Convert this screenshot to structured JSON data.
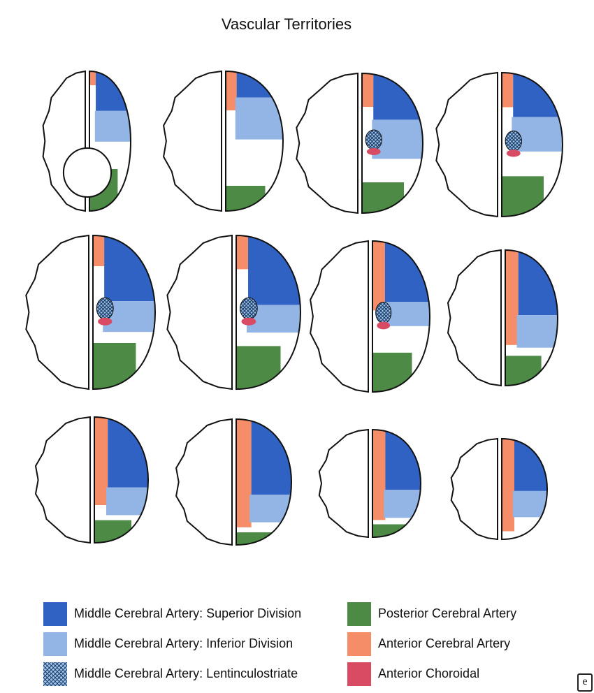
{
  "title": "Vascular Territories",
  "colors": {
    "mca_superior": "#2f62c2",
    "mca_inferior": "#93b5e6",
    "mca_lenticulostriate": "#1e3f6b",
    "pca": "#4c8a45",
    "aca": "#f58d69",
    "anterior_choroidal": "#d94a63",
    "outline": "#111111"
  },
  "legend": [
    {
      "key": "mca_superior",
      "label": "Middle Cerebral Artery: Superior Division"
    },
    {
      "key": "mca_inferior",
      "label": "Middle Cerebral Artery: Inferior Division"
    },
    {
      "key": "mca_lenticulostriate",
      "label": "Middle Cerebral Artery: Lentinculostriate",
      "pattern": "crosshatch"
    },
    {
      "key": "pca",
      "label": "Posterior Cerebral Artery"
    },
    {
      "key": "aca",
      "label": "Anterior Cerebral Artery"
    },
    {
      "key": "anterior_choroidal",
      "label": "Anterior Choroidal"
    }
  ],
  "corner_mark": "e",
  "slices": [
    {
      "level": 1,
      "aca": 0.1,
      "mca_sup": 0.22,
      "mca_inf": 0.22,
      "pca": 0.3,
      "lenticulostriate": false,
      "choroidal": false,
      "cerebellum": true
    },
    {
      "level": 2,
      "aca": 0.28,
      "mca_sup": 0.14,
      "mca_inf": 0.3,
      "pca": 0.18,
      "lenticulostriate": false,
      "choroidal": false,
      "cerebellum": false
    },
    {
      "level": 3,
      "aca": 0.24,
      "mca_sup": 0.26,
      "mca_inf": 0.28,
      "pca": 0.22,
      "lenticulostriate": true,
      "choroidal": true,
      "cerebellum": false
    },
    {
      "level": 4,
      "aca": 0.24,
      "mca_sup": 0.24,
      "mca_inf": 0.24,
      "pca": 0.28,
      "lenticulostriate": true,
      "choroidal": true,
      "cerebellum": false
    },
    {
      "level": 5,
      "aca": 0.2,
      "mca_sup": 0.34,
      "mca_inf": 0.2,
      "pca": 0.3,
      "lenticulostriate": true,
      "choroidal": true,
      "cerebellum": false
    },
    {
      "level": 6,
      "aca": 0.22,
      "mca_sup": 0.36,
      "mca_inf": 0.18,
      "pca": 0.28,
      "lenticulostriate": true,
      "choroidal": true,
      "cerebellum": false
    },
    {
      "level": 7,
      "aca": 0.46,
      "mca_sup": 0.32,
      "mca_inf": 0.16,
      "pca": 0.26,
      "lenticulostriate": true,
      "choroidal": true,
      "cerebellum": false
    },
    {
      "level": 8,
      "aca": 0.7,
      "mca_sup": 0.48,
      "mca_inf": 0.24,
      "pca": 0.22,
      "lenticulostriate": false,
      "choroidal": false,
      "cerebellum": false
    },
    {
      "level": 9,
      "aca": 0.7,
      "mca_sup": 0.56,
      "mca_inf": 0.22,
      "pca": 0.18,
      "lenticulostriate": false,
      "choroidal": false,
      "cerebellum": false
    },
    {
      "level": 10,
      "aca": 0.86,
      "mca_sup": 0.6,
      "mca_inf": 0.22,
      "pca": 0.1,
      "lenticulostriate": false,
      "choroidal": false,
      "cerebellum": false
    },
    {
      "level": 11,
      "aca": 0.84,
      "mca_sup": 0.56,
      "mca_inf": 0.26,
      "pca": 0.12,
      "lenticulostriate": false,
      "choroidal": false,
      "cerebellum": false
    },
    {
      "level": 12,
      "aca": 0.92,
      "mca_sup": 0.52,
      "mca_inf": 0.26,
      "pca": 0.0,
      "lenticulostriate": false,
      "choroidal": false,
      "cerebellum": false
    }
  ]
}
